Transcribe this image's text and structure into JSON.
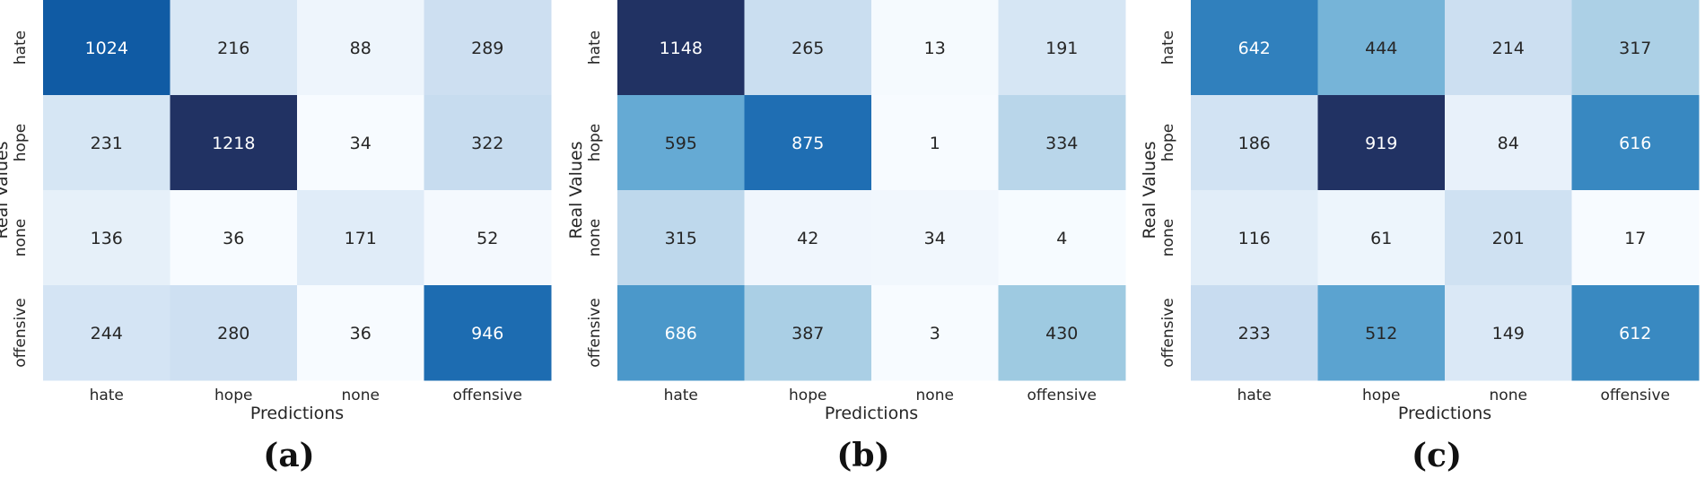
{
  "chart_data": [
    {
      "type": "heatmap",
      "panel_label": "(a)",
      "xlabel": "Predictions",
      "ylabel": "Real Values",
      "x_categories": [
        "hate",
        "hope",
        "none",
        "offensive"
      ],
      "y_categories": [
        "hate",
        "hope",
        "none",
        "offensive"
      ],
      "values": [
        [
          1024,
          216,
          88,
          289
        ],
        [
          231,
          1218,
          34,
          322
        ],
        [
          136,
          36,
          171,
          52
        ],
        [
          244,
          280,
          36,
          946
        ]
      ],
      "colormap": "Blues"
    },
    {
      "type": "heatmap",
      "panel_label": "(b)",
      "xlabel": "Predictions",
      "ylabel": "Real Values",
      "x_categories": [
        "hate",
        "hope",
        "none",
        "offensive"
      ],
      "y_categories": [
        "hate",
        "hope",
        "none",
        "offensive"
      ],
      "values": [
        [
          1148,
          265,
          13,
          191
        ],
        [
          595,
          875,
          1,
          334
        ],
        [
          315,
          42,
          34,
          4
        ],
        [
          686,
          387,
          3,
          430
        ]
      ],
      "colormap": "Blues"
    },
    {
      "type": "heatmap",
      "panel_label": "(c)",
      "xlabel": "Predictions",
      "ylabel": "Real Values",
      "x_categories": [
        "hate",
        "hope",
        "none",
        "offensive"
      ],
      "y_categories": [
        "hate",
        "hope",
        "none",
        "offensive"
      ],
      "values": [
        [
          642,
          444,
          214,
          317
        ],
        [
          186,
          919,
          84,
          616
        ],
        [
          116,
          61,
          201,
          17
        ],
        [
          233,
          512,
          149,
          612
        ]
      ],
      "colormap": "Blues"
    }
  ],
  "colors": {
    "blues_stops": [
      "#f7fbff",
      "#deebf7",
      "#c6dbef",
      "#9ecae1",
      "#6baed6",
      "#4292c6",
      "#2171b5",
      "#08519c",
      "#08306b"
    ],
    "top_stop": "#213263",
    "text_dark": "#262626",
    "text_light": "#ffffff"
  }
}
